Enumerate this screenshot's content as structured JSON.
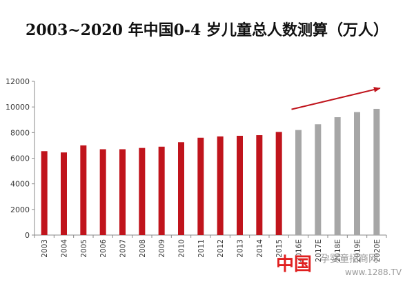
{
  "chart_data": {
    "type": "bar",
    "title": "2003~2020 年中国0-4 岁儿童总人数测算（万人）",
    "categories": [
      "2003",
      "2004",
      "2005",
      "2006",
      "2007",
      "2008",
      "2009",
      "2010",
      "2011",
      "2012",
      "2013",
      "2014",
      "2015",
      "2016E",
      "2017E",
      "2018E",
      "2019E",
      "2020E"
    ],
    "series": [
      {
        "values": [
          6550,
          6450,
          7000,
          6700,
          6700,
          6800,
          6900,
          7250,
          7600,
          7700,
          7750,
          7800,
          8050,
          null,
          null,
          null,
          null,
          null
        ],
        "color": "#c0141c"
      },
      {
        "values": [
          null,
          null,
          null,
          null,
          null,
          null,
          null,
          null,
          null,
          null,
          null,
          null,
          null,
          8200,
          8650,
          9200,
          9600,
          9850
        ],
        "color": "#a6a6a6"
      }
    ],
    "ylim": [
      0,
      12000
    ],
    "yticks": [
      0,
      2000,
      4000,
      6000,
      8000,
      10000,
      12000
    ],
    "grid": false,
    "trend_arrow_color": "#c0141c"
  },
  "watermark": {
    "logo_text": "中国",
    "text": "孕婴童招商网",
    "url": "www.1288.TV"
  }
}
